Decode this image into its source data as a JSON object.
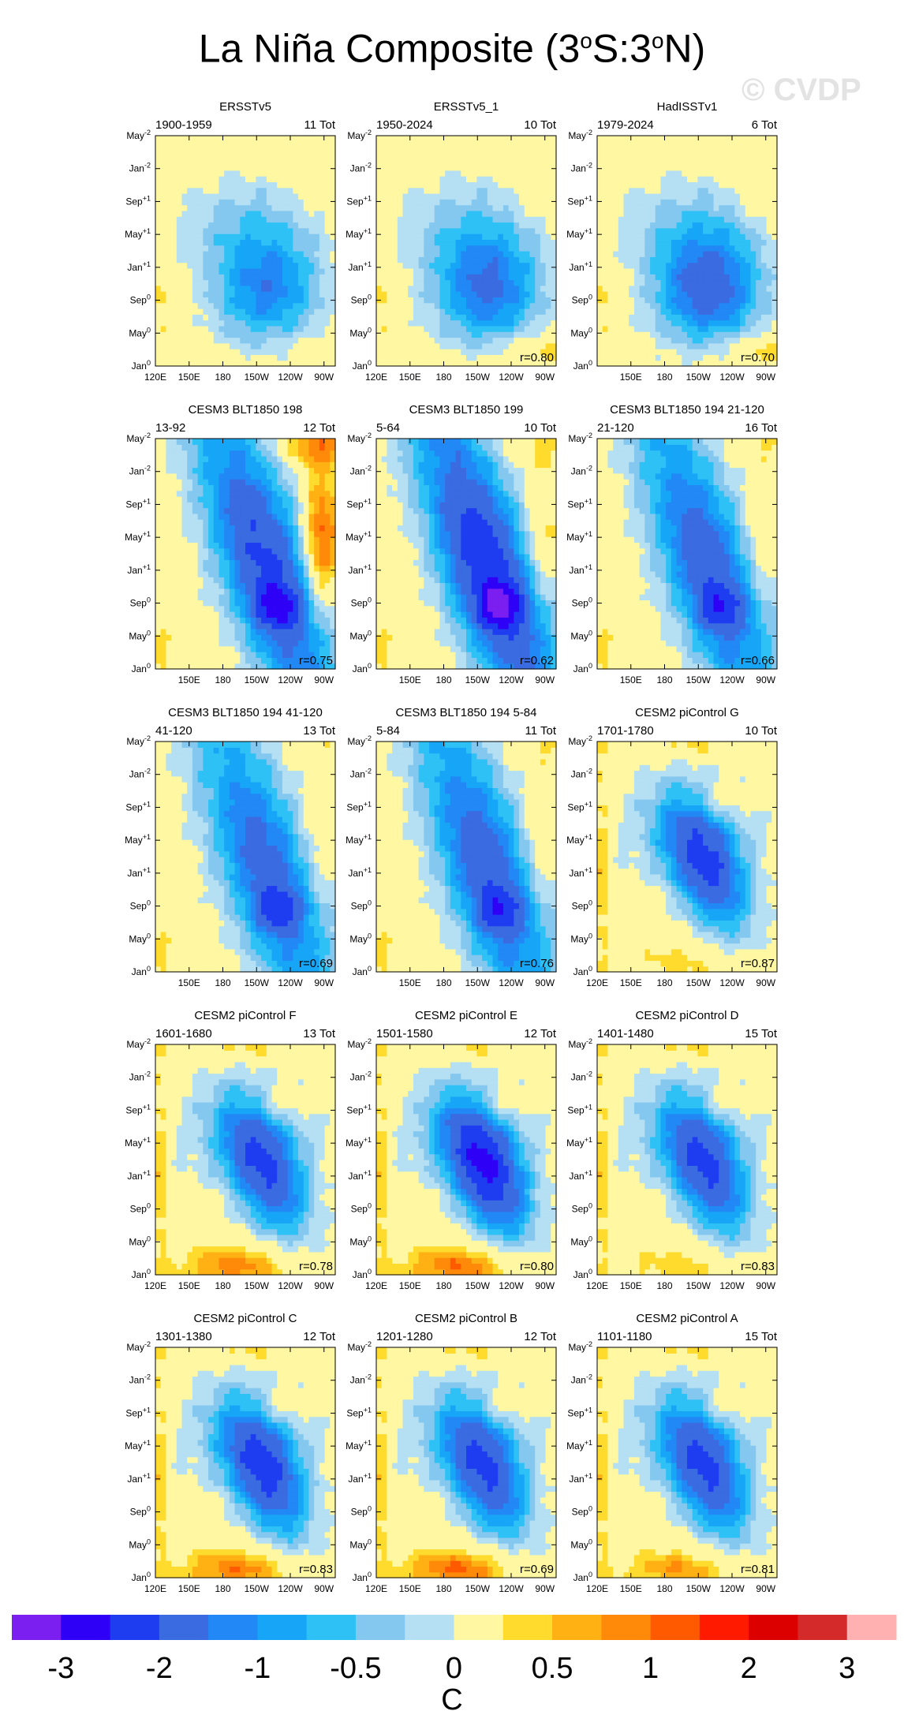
{
  "title": {
    "prefix": "La Niña Composite (3",
    "sup1": "o",
    "mid": "S:3",
    "sup2": "o",
    "suffix": "N)"
  },
  "watermark": "© CVDP",
  "chart_data": {
    "type": "heatmap",
    "axes": {
      "y_ticks": [
        {
          "base": "Jan",
          "exp": "0"
        },
        {
          "base": "May",
          "exp": "0"
        },
        {
          "base": "Sep",
          "exp": "0"
        },
        {
          "base": "Jan",
          "exp": "+1"
        },
        {
          "base": "May",
          "exp": "+1"
        },
        {
          "base": "Sep",
          "exp": "+1"
        },
        {
          "base": "Jan",
          "exp": "-2"
        },
        {
          "base": "May",
          "exp": "-2"
        }
      ],
      "x_ticks_full": [
        "120E",
        "150E",
        "180",
        "150W",
        "120W",
        "90W"
      ],
      "x_ticks_short": [
        "150E",
        "180",
        "150W",
        "120W",
        "90W"
      ],
      "x_range": [
        120,
        280
      ],
      "y_range": [
        0,
        28
      ]
    },
    "colorbar": {
      "colors": [
        "#7a1ff0",
        "#2e00f5",
        "#1e3cf0",
        "#3b6be0",
        "#2188f5",
        "#17a6f7",
        "#2ec1f5",
        "#84c8f0",
        "#b5dff2",
        "#fff7a2",
        "#ffdb2e",
        "#ffb012",
        "#ff8a0a",
        "#ff5a00",
        "#ff1a00",
        "#dc0000",
        "#d42a2a",
        "#ffb0b0"
      ],
      "labels": [
        "-3",
        "-2",
        "-1",
        "-0.5",
        "0",
        "0.5",
        "1",
        "2",
        "3"
      ],
      "unit": "C"
    },
    "panels": [
      {
        "title": "ERSSTv5",
        "period": "1900-1959",
        "tot": "11 Tot",
        "r": "",
        "pattern": "ob",
        "amp": 1.35,
        "warm": 0.25
      },
      {
        "title": "ERSSTv5_1",
        "period": "1950-2024",
        "tot": "10 Tot",
        "r": "r=0.80",
        "pattern": "ob",
        "amp": 1.55,
        "warm": 0.45
      },
      {
        "title": "HadISSTv1",
        "period": "1979-2024",
        "tot": "6 Tot",
        "r": "r=0.70",
        "pattern": "ob",
        "amp": 1.75,
        "warm": 0.5
      },
      {
        "title": "CESM3 BLT1850 198",
        "period": "13-92",
        "tot": "12 Tot",
        "r": "r=0.75",
        "pattern": "bl",
        "amp": 2.25,
        "warm": 0.75
      },
      {
        "title": "CESM3 BLT1850 199",
        "period": "5-64",
        "tot": "10 Tot",
        "r": "r=0.62",
        "pattern": "bl",
        "amp": 2.55,
        "warm": 0.3
      },
      {
        "title": "CESM3 BLT1850 194 21-120",
        "period": "21-120",
        "tot": "16 Tot",
        "r": "r=0.66",
        "pattern": "bl",
        "amp": 1.95,
        "warm": 0.2
      },
      {
        "title": "CESM3 BLT1850 194 41-120",
        "period": "41-120",
        "tot": "13 Tot",
        "r": "r=0.69",
        "pattern": "bl",
        "amp": 1.85,
        "warm": 0.15
      },
      {
        "title": "CESM3 BLT1850 194 5-84",
        "period": "5-84",
        "tot": "11 Tot",
        "r": "r=0.76",
        "pattern": "bl",
        "amp": 1.95,
        "warm": 0.2
      },
      {
        "title": "CESM2 piControl G",
        "period": "1701-1780",
        "tot": "10 Tot",
        "r": "r=0.87",
        "pattern": "pc",
        "amp": 2.0,
        "warm": 0.35
      },
      {
        "title": "CESM2 piControl F",
        "period": "1601-1680",
        "tot": "13 Tot",
        "r": "r=0.78",
        "pattern": "pc",
        "amp": 1.95,
        "warm": 0.9
      },
      {
        "title": "CESM2 piControl E",
        "period": "1501-1580",
        "tot": "12 Tot",
        "r": "r=0.80",
        "pattern": "pc",
        "amp": 2.45,
        "warm": 1.0
      },
      {
        "title": "CESM2 piControl D",
        "period": "1401-1480",
        "tot": "15 Tot",
        "r": "r=0.83",
        "pattern": "pc",
        "amp": 1.95,
        "warm": 0.4
      },
      {
        "title": "CESM2 piControl C",
        "period": "1301-1380",
        "tot": "12 Tot",
        "r": "r=0.83",
        "pattern": "pc",
        "amp": 2.05,
        "warm": 0.95
      },
      {
        "title": "CESM2 piControl B",
        "period": "1201-1280",
        "tot": "12 Tot",
        "r": "r=0.69",
        "pattern": "pc",
        "amp": 1.95,
        "warm": 1.05
      },
      {
        "title": "CESM2 piControl A",
        "period": "1101-1180",
        "tot": "15 Tot",
        "r": "r=0.81",
        "pattern": "pc",
        "amp": 1.95,
        "warm": 0.75
      }
    ]
  }
}
